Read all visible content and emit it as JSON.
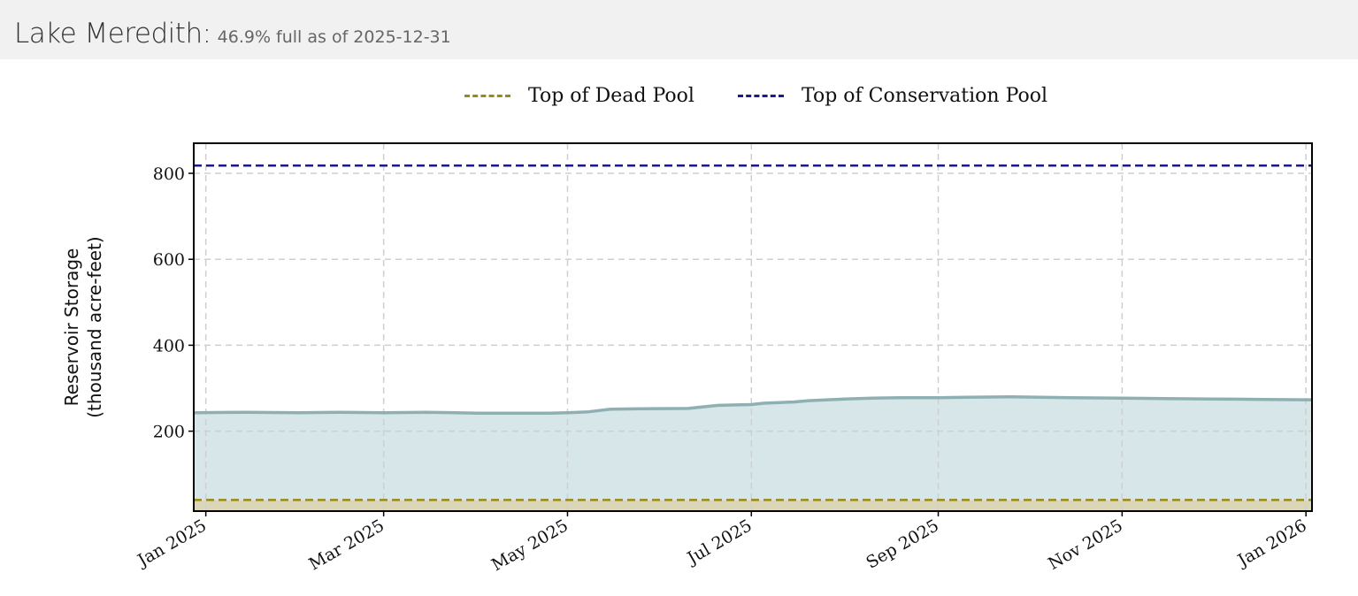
{
  "header": {
    "lake_name": "Lake Meredith:",
    "status_text": "46.9% full as of 2025-12-31"
  },
  "chart_data": {
    "type": "area",
    "title": "",
    "ylabel_line1": "Reservoir Storage",
    "ylabel_line2": "(thousand acre-feet)",
    "xlim": [
      "2024-12-28",
      "2026-01-03"
    ],
    "ylim": [
      14,
      870
    ],
    "grid": true,
    "legend_position": "top",
    "x_ticks": [
      {
        "date": "2025-01-01",
        "label": "Jan 2025"
      },
      {
        "date": "2025-03-01",
        "label": "Mar 2025"
      },
      {
        "date": "2025-05-01",
        "label": "May 2025"
      },
      {
        "date": "2025-07-01",
        "label": "Jul 2025"
      },
      {
        "date": "2025-09-01",
        "label": "Sep 2025"
      },
      {
        "date": "2025-11-01",
        "label": "Nov 2025"
      },
      {
        "date": "2026-01-01",
        "label": "Jan 2026"
      }
    ],
    "y_ticks": [
      200,
      400,
      600,
      800
    ],
    "reference_lines": [
      {
        "name": "Top of Dead Pool",
        "value": 40,
        "color": "#9a8a10"
      },
      {
        "name": "Top of Conservation Pool",
        "value": 818,
        "color": "#1a1a8c"
      }
    ],
    "series": [
      {
        "color": "#8fb0b2",
        "fill_color": "#d7e6e8",
        "points": [
          [
            "2024-12-28",
            243
          ],
          [
            "2025-01-15",
            244
          ],
          [
            "2025-02-01",
            243
          ],
          [
            "2025-02-15",
            244
          ],
          [
            "2025-03-01",
            243
          ],
          [
            "2025-03-15",
            244
          ],
          [
            "2025-04-01",
            242
          ],
          [
            "2025-04-25",
            242
          ],
          [
            "2025-05-01",
            243
          ],
          [
            "2025-05-08",
            245
          ],
          [
            "2025-05-15",
            251
          ],
          [
            "2025-05-25",
            252
          ],
          [
            "2025-06-10",
            253
          ],
          [
            "2025-06-20",
            260
          ],
          [
            "2025-07-01",
            262
          ],
          [
            "2025-07-05",
            265
          ],
          [
            "2025-07-15",
            268
          ],
          [
            "2025-07-20",
            271
          ],
          [
            "2025-08-01",
            275
          ],
          [
            "2025-08-10",
            277
          ],
          [
            "2025-08-20",
            278
          ],
          [
            "2025-09-01",
            278
          ],
          [
            "2025-09-10",
            279
          ],
          [
            "2025-09-25",
            280
          ],
          [
            "2025-10-05",
            279
          ],
          [
            "2025-10-15",
            278
          ],
          [
            "2025-11-01",
            277
          ],
          [
            "2025-11-15",
            276
          ],
          [
            "2025-12-01",
            275
          ],
          [
            "2025-12-15",
            274
          ],
          [
            "2026-01-01",
            273
          ],
          [
            "2026-01-03",
            273
          ]
        ]
      }
    ]
  }
}
